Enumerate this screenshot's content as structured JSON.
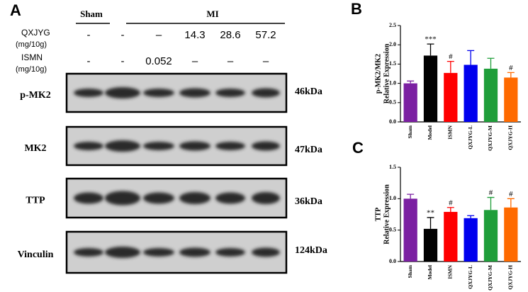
{
  "panel_a": {
    "letter": "A",
    "sham": "Sham",
    "mi": "MI",
    "treatments": [
      {
        "name": "QXJYG",
        "unit": "(mg/10g)",
        "doses": [
          "-",
          "-",
          "–",
          14.3,
          28.6,
          57.2
        ]
      },
      {
        "name": "ISMN",
        "unit": "(mg/10g)",
        "doses": [
          "-",
          "-",
          0.052,
          "–",
          "–",
          "–"
        ]
      }
    ],
    "blots": [
      {
        "name": "p-MK2",
        "size": "46kDa"
      },
      {
        "name": "MK2",
        "size": "47kDa"
      },
      {
        "name": "TTP",
        "size": "36kDa"
      },
      {
        "name": "Vinculin",
        "size": "124kDa"
      }
    ]
  },
  "chart_data": [
    {
      "type": "bar",
      "letter": "B",
      "ylabel": [
        "p-MK2/MK2",
        "Relative Expression"
      ],
      "categories": [
        "Sham",
        "Model",
        "ISMN",
        "QXJYG-L",
        "QXJYG-M",
        "QXJYG-H"
      ],
      "values": [
        1.0,
        1.72,
        1.27,
        1.48,
        1.38,
        1.15
      ],
      "errors": [
        0.06,
        0.3,
        0.3,
        0.37,
        0.27,
        0.13
      ],
      "annotations": [
        null,
        "***",
        "#",
        null,
        null,
        "#"
      ],
      "colors": [
        "#7b1fa2",
        "#000000",
        "#ff0000",
        "#0000ee",
        "#1f9e3a",
        "#ff6a00"
      ],
      "ylim": [
        0,
        2.5
      ],
      "yticks": [
        {
          "value": 0,
          "label": "0.0"
        },
        0.5,
        {
          "value": 1,
          "label": "1.0"
        },
        1.5,
        {
          "value": 2,
          "label": "2.0"
        },
        2.5
      ]
    },
    {
      "type": "bar",
      "letter": "C",
      "ylabel": [
        "TTP",
        "Relative Expression"
      ],
      "categories": [
        "Sham",
        "Model",
        "ISMN",
        "QXJYG-L",
        "QXJYG-M",
        "QXJYG-H"
      ],
      "values": [
        1.0,
        0.52,
        0.79,
        0.69,
        0.82,
        0.86
      ],
      "errors": [
        0.07,
        0.18,
        0.07,
        0.04,
        0.2,
        0.14
      ],
      "annotations": [
        null,
        "**",
        "#",
        null,
        "#",
        "#"
      ],
      "colors": [
        "#7b1fa2",
        "#000000",
        "#ff0000",
        "#0000ee",
        "#1f9e3a",
        "#ff6a00"
      ],
      "ylim": [
        0,
        1.5
      ],
      "yticks": [
        {
          "value": 0,
          "label": "0.0"
        },
        0.5,
        {
          "value": 1,
          "label": "1.0"
        },
        1.5
      ]
    }
  ]
}
